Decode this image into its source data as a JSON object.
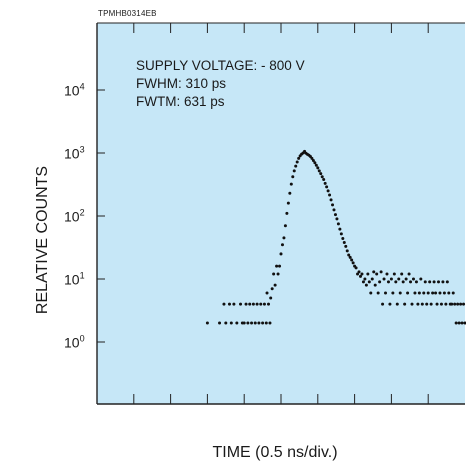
{
  "document_code": "TPMHB0314EB",
  "chart_data": {
    "type": "scatter",
    "title": "",
    "xlabel": "TIME (0.5 ns/div.)",
    "ylabel": "RELATIVE COUNTS",
    "yscale": "log",
    "ylim": [
      0.1,
      100000
    ],
    "xlim": [
      0,
      10
    ],
    "grid": false,
    "background": "#c6e7f7",
    "point_color": "#111111",
    "y_ticks": [
      {
        "base": "10",
        "exp": "4",
        "value": 10000
      },
      {
        "base": "10",
        "exp": "3",
        "value": 1000
      },
      {
        "base": "10",
        "exp": "2",
        "value": 100
      },
      {
        "base": "10",
        "exp": "1",
        "value": 10
      },
      {
        "base": "10",
        "exp": "0",
        "value": 1
      }
    ],
    "annotations": [
      "SUPPLY VOLTAGE: - 800 V",
      "FWHM: 310 ps",
      "FWTM: 631 ps"
    ],
    "series": [
      {
        "points": [
          [
            3.0,
            2
          ],
          [
            3.33,
            2
          ],
          [
            3.45,
            4
          ],
          [
            3.5,
            2
          ],
          [
            3.6,
            4
          ],
          [
            3.65,
            2
          ],
          [
            3.72,
            4
          ],
          [
            3.8,
            2
          ],
          [
            3.9,
            4
          ],
          [
            3.95,
            2
          ],
          [
            4.0,
            2
          ],
          [
            4.05,
            4
          ],
          [
            4.1,
            2
          ],
          [
            4.15,
            4
          ],
          [
            4.2,
            2
          ],
          [
            4.25,
            4
          ],
          [
            4.3,
            2
          ],
          [
            4.35,
            4
          ],
          [
            4.4,
            2
          ],
          [
            4.45,
            4
          ],
          [
            4.5,
            2
          ],
          [
            4.55,
            4
          ],
          [
            4.6,
            2
          ],
          [
            4.62,
            6
          ],
          [
            4.66,
            4
          ],
          [
            4.7,
            2
          ],
          [
            4.72,
            5
          ],
          [
            4.76,
            7
          ],
          [
            4.8,
            12
          ],
          [
            4.84,
            8
          ],
          [
            4.88,
            16
          ],
          [
            4.92,
            12
          ],
          [
            4.96,
            16
          ],
          [
            5.0,
            25
          ],
          [
            5.04,
            35
          ],
          [
            5.08,
            45
          ],
          [
            5.12,
            70
          ],
          [
            5.16,
            110
          ],
          [
            5.2,
            160
          ],
          [
            5.24,
            230
          ],
          [
            5.28,
            320
          ],
          [
            5.32,
            420
          ],
          [
            5.36,
            520
          ],
          [
            5.4,
            620
          ],
          [
            5.44,
            720
          ],
          [
            5.48,
            820
          ],
          [
            5.52,
            900
          ],
          [
            5.56,
            960
          ],
          [
            5.6,
            1000
          ],
          [
            5.64,
            1060
          ],
          [
            5.68,
            990
          ],
          [
            5.72,
            950
          ],
          [
            5.76,
            920
          ],
          [
            5.8,
            880
          ],
          [
            5.84,
            820
          ],
          [
            5.88,
            760
          ],
          [
            5.92,
            700
          ],
          [
            5.96,
            640
          ],
          [
            6.0,
            580
          ],
          [
            6.04,
            520
          ],
          [
            6.08,
            470
          ],
          [
            6.12,
            420
          ],
          [
            6.16,
            380
          ],
          [
            6.2,
            330
          ],
          [
            6.24,
            290
          ],
          [
            6.28,
            250
          ],
          [
            6.32,
            215
          ],
          [
            6.36,
            180
          ],
          [
            6.4,
            150
          ],
          [
            6.44,
            125
          ],
          [
            6.48,
            105
          ],
          [
            6.52,
            90
          ],
          [
            6.56,
            75
          ],
          [
            6.6,
            62
          ],
          [
            6.64,
            52
          ],
          [
            6.68,
            44
          ],
          [
            6.72,
            38
          ],
          [
            6.76,
            33
          ],
          [
            6.8,
            28
          ],
          [
            6.84,
            24
          ],
          [
            6.88,
            22
          ],
          [
            6.92,
            20
          ],
          [
            6.96,
            18
          ],
          [
            7.0,
            16
          ],
          [
            7.04,
            15
          ],
          [
            7.08,
            12
          ],
          [
            7.12,
            13
          ],
          [
            7.16,
            11
          ],
          [
            7.2,
            12
          ],
          [
            7.24,
            9
          ],
          [
            7.28,
            10
          ],
          [
            7.32,
            8
          ],
          [
            7.36,
            12
          ],
          [
            7.4,
            9
          ],
          [
            7.44,
            6
          ],
          [
            7.48,
            10
          ],
          [
            7.52,
            13
          ],
          [
            7.56,
            8
          ],
          [
            7.6,
            12
          ],
          [
            7.64,
            6
          ],
          [
            7.68,
            9
          ],
          [
            7.72,
            13
          ],
          [
            7.76,
            4
          ],
          [
            7.8,
            10
          ],
          [
            7.84,
            6
          ],
          [
            7.88,
            12
          ],
          [
            7.92,
            9
          ],
          [
            7.96,
            4
          ],
          [
            8.0,
            10
          ],
          [
            8.04,
            6
          ],
          [
            8.08,
            12
          ],
          [
            8.12,
            9
          ],
          [
            8.16,
            4
          ],
          [
            8.2,
            10
          ],
          [
            8.24,
            6
          ],
          [
            8.28,
            12
          ],
          [
            8.32,
            9
          ],
          [
            8.36,
            4
          ],
          [
            8.4,
            10
          ],
          [
            8.44,
            6
          ],
          [
            8.48,
            12
          ],
          [
            8.52,
            9
          ],
          [
            8.56,
            4
          ],
          [
            8.6,
            10
          ],
          [
            8.64,
            6
          ],
          [
            8.68,
            9
          ],
          [
            8.72,
            4
          ],
          [
            8.76,
            6
          ],
          [
            8.8,
            10
          ],
          [
            8.84,
            4
          ],
          [
            8.88,
            6
          ],
          [
            8.92,
            9
          ],
          [
            8.96,
            4
          ],
          [
            9.0,
            6
          ],
          [
            9.04,
            9
          ],
          [
            9.08,
            4
          ],
          [
            9.12,
            6
          ],
          [
            9.16,
            9
          ],
          [
            9.2,
            6
          ],
          [
            9.24,
            4
          ],
          [
            9.28,
            9
          ],
          [
            9.32,
            6
          ],
          [
            9.36,
            4
          ],
          [
            9.4,
            9
          ],
          [
            9.44,
            6
          ],
          [
            9.48,
            4
          ],
          [
            9.52,
            9
          ],
          [
            9.56,
            6
          ],
          [
            9.6,
            4
          ],
          [
            9.64,
            4
          ],
          [
            9.68,
            6
          ],
          [
            9.72,
            4
          ],
          [
            9.76,
            2
          ],
          [
            9.8,
            4
          ],
          [
            9.84,
            2
          ],
          [
            9.88,
            4
          ],
          [
            9.92,
            2
          ],
          [
            9.96,
            4
          ],
          [
            10.0,
            2
          ]
        ]
      }
    ]
  }
}
